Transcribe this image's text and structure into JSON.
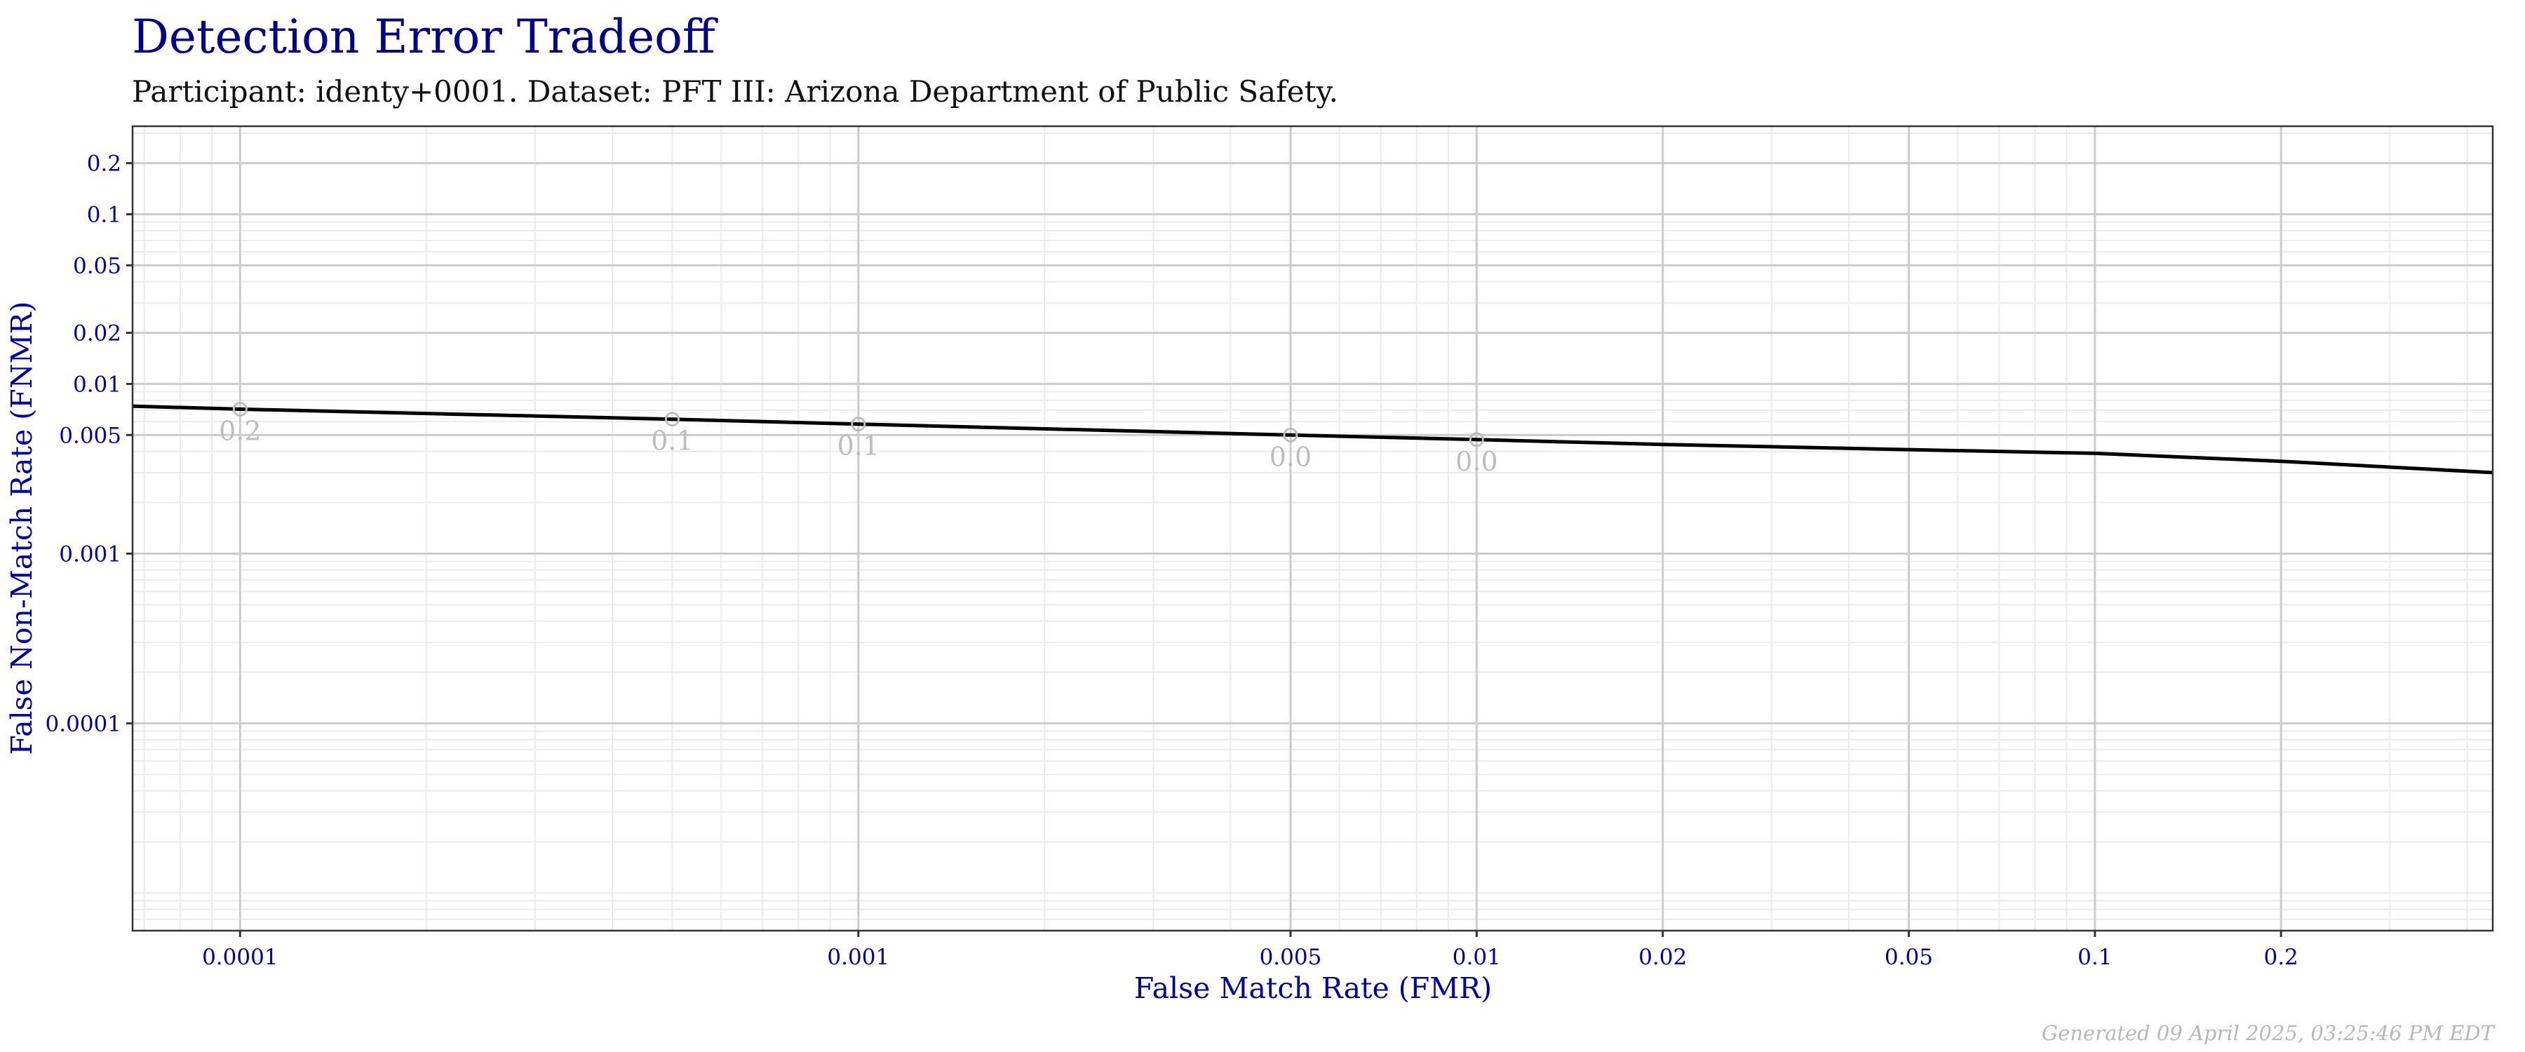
{
  "title": "Detection Error Tradeoff",
  "subtitle": "Participant: identy+0001. Dataset: PFT III: Arizona Department of Public Safety.",
  "footer": "Generated 09 April 2025, 03:25:46 PM EDT",
  "colors": {
    "title": "#00008b",
    "axis_text": "#0000aa",
    "line": "#000000",
    "point_labels": "#bdbdbd"
  },
  "chart_data": {
    "type": "line",
    "xlabel": "False Match Rate (FMR)",
    "ylabel": "False Non-Match Rate (FNMR)",
    "xscale": "log",
    "yscale": "log",
    "xlim": [
      6.7e-05,
      0.44
    ],
    "ylim": [
      6e-06,
      0.33
    ],
    "grid": true,
    "x_ticks": [
      0.0001,
      0.001,
      0.005,
      0.01,
      0.02,
      0.05,
      0.1,
      0.2
    ],
    "x_tick_labels": [
      "0.0001",
      "0.001",
      "0.005",
      "0.01",
      "0.02",
      "0.05",
      "0.1",
      "0.2"
    ],
    "y_ticks": [
      0.2,
      0.1,
      0.05,
      0.02,
      0.01,
      0.005,
      0.001,
      0.0001
    ],
    "y_tick_labels": [
      "0.2",
      "0.1",
      "0.05",
      "0.02",
      "0.01",
      "0.005",
      "0.001",
      "0.0001"
    ],
    "series": [
      {
        "x": [
          6.7e-05,
          0.0001,
          0.0005,
          0.001,
          0.005,
          0.01,
          0.02,
          0.05,
          0.1,
          0.2,
          0.44
        ],
        "y": [
          0.0074,
          0.0071,
          0.0062,
          0.0058,
          0.005,
          0.0047,
          0.0044,
          0.0041,
          0.0039,
          0.0035,
          0.003
        ]
      }
    ],
    "threshold_points": [
      {
        "x": 0.0001,
        "y": 0.0071,
        "label": "0.2"
      },
      {
        "x": 0.0005,
        "y": 0.0062,
        "label": "0.1"
      },
      {
        "x": 0.001,
        "y": 0.0058,
        "label": "0.1"
      },
      {
        "x": 0.005,
        "y": 0.005,
        "label": "0.0"
      },
      {
        "x": 0.01,
        "y": 0.0047,
        "label": "0.0"
      }
    ]
  }
}
